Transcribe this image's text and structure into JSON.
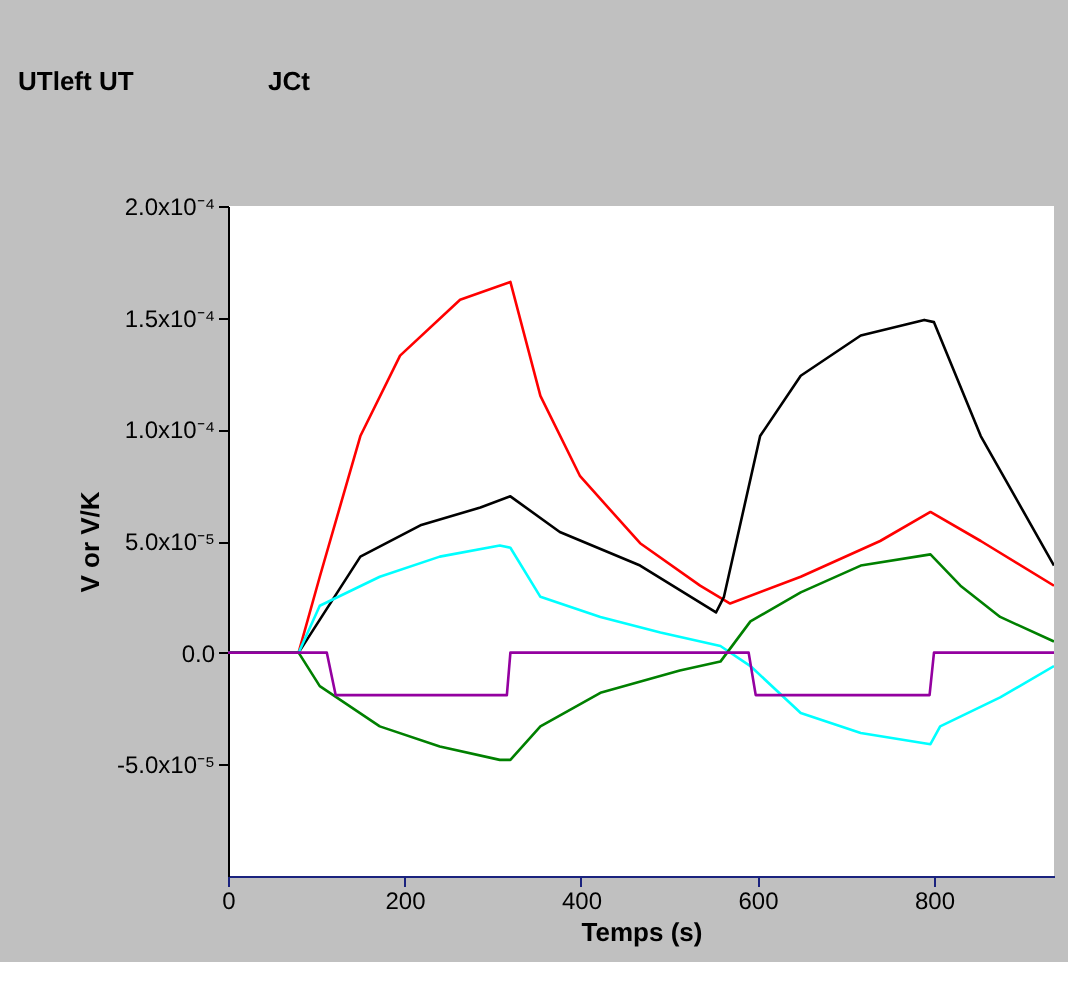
{
  "chart_data": {
    "type": "line",
    "xlabel": "Temps (s)",
    "ylabel": "V or V/K",
    "annotations": [
      "UTleft UT",
      "JCt"
    ],
    "xlim": [
      0,
      936
    ],
    "xticks": [
      0,
      200,
      400,
      600,
      800
    ],
    "ylim": [
      -0.0001,
      0.0002
    ],
    "yticks": [
      {
        "value": 0.0002,
        "label": "2.0x10⁻⁴"
      },
      {
        "value": 0.00015,
        "label": "1.5x10⁻⁴"
      },
      {
        "value": 0.0001,
        "label": "1.0x10⁻⁴"
      },
      {
        "value": 5e-05,
        "label": "5.0x10⁻⁵"
      },
      {
        "value": 0,
        "label": "0.0"
      },
      {
        "value": -5e-05,
        "label": "-5.0x10⁻⁵"
      }
    ],
    "grid": false,
    "marker": "none",
    "line_style": "solid",
    "series": [
      {
        "color": "#ff0000",
        "x": [
          0,
          80,
          104,
          150,
          195,
          263,
          320,
          354,
          399,
          467,
          535,
          569,
          649,
          739,
          796,
          853,
          936
        ],
        "values": [
          0,
          0,
          3.4e-05,
          9.7e-05,
          0.000133,
          0.000158,
          0.000166,
          0.000115,
          7.9e-05,
          4.9e-05,
          3e-05,
          2.2e-05,
          3.4e-05,
          5e-05,
          6.3e-05,
          5e-05,
          3e-05
        ]
      },
      {
        "color": "#000000",
        "x": [
          0,
          80,
          150,
          218,
          286,
          320,
          376,
          467,
          553,
          562,
          603,
          649,
          717,
          789,
          800,
          853,
          936
        ],
        "values": [
          0,
          0,
          4.3e-05,
          5.7e-05,
          6.5e-05,
          7e-05,
          5.4e-05,
          3.9e-05,
          1.8e-05,
          2.5e-05,
          9.7e-05,
          0.000124,
          0.000142,
          0.000149,
          0.000148,
          9.7e-05,
          3.9e-05
        ]
      },
      {
        "color": "#00ffff",
        "x": [
          0,
          80,
          104,
          172,
          240,
          308,
          320,
          354,
          422,
          490,
          558,
          592,
          649,
          717,
          796,
          807,
          875,
          936
        ],
        "values": [
          0,
          0,
          2.1e-05,
          3.4e-05,
          4.3e-05,
          4.8e-05,
          4.7e-05,
          2.5e-05,
          1.6e-05,
          9e-06,
          3e-06,
          -6e-06,
          -2.7e-05,
          -3.6e-05,
          -4.1e-05,
          -3.3e-05,
          -2e-05,
          -6e-06
        ]
      },
      {
        "color": "#008000",
        "x": [
          0,
          80,
          104,
          172,
          240,
          308,
          320,
          354,
          422,
          512,
          558,
          592,
          649,
          717,
          796,
          830,
          875,
          936
        ],
        "values": [
          0,
          0,
          -1.5e-05,
          -3.3e-05,
          -4.2e-05,
          -4.8e-05,
          -4.8e-05,
          -3.3e-05,
          -1.8e-05,
          -8e-06,
          -4e-06,
          1.4e-05,
          2.7e-05,
          3.9e-05,
          4.4e-05,
          3e-05,
          1.6e-05,
          5e-06
        ]
      },
      {
        "color": "#9400a0",
        "x": [
          0,
          112,
          122,
          316,
          320,
          590,
          598,
          795,
          800,
          936
        ],
        "values": [
          0,
          0,
          -1.9e-05,
          -1.9e-05,
          0,
          0,
          -1.9e-05,
          -1.9e-05,
          0,
          0
        ]
      }
    ]
  }
}
